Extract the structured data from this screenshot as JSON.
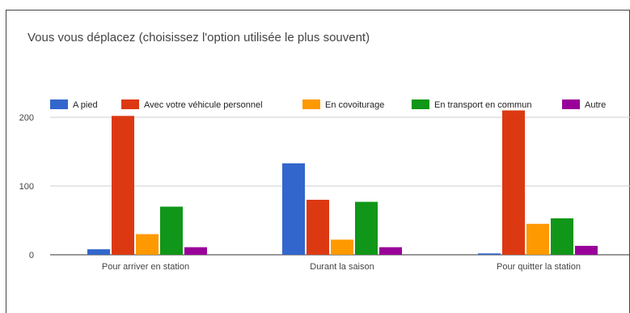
{
  "chart_data": {
    "type": "bar",
    "title": "Vous vous déplacez (choisissez l'option utilisée le plus souvent)",
    "categories": [
      "Pour arriver en station",
      "Durant la saison",
      "Pour quitter la station"
    ],
    "series": [
      {
        "name": "A pied",
        "color": "#3366cc",
        "values": [
          8,
          133,
          2
        ]
      },
      {
        "name": "Avec votre véhicule personnel",
        "color": "#dc3912",
        "values": [
          202,
          80,
          210
        ]
      },
      {
        "name": "En covoiturage",
        "color": "#ff9900",
        "values": [
          30,
          22,
          45
        ]
      },
      {
        "name": "En transport en commun",
        "color": "#109618",
        "values": [
          70,
          77,
          53
        ]
      },
      {
        "name": "Autre",
        "color": "#990099",
        "values": [
          11,
          11,
          13
        ]
      }
    ],
    "y_ticks": [
      "0",
      "100",
      "200"
    ],
    "ylim": [
      0,
      220
    ],
    "grid": true,
    "legend": "top"
  }
}
